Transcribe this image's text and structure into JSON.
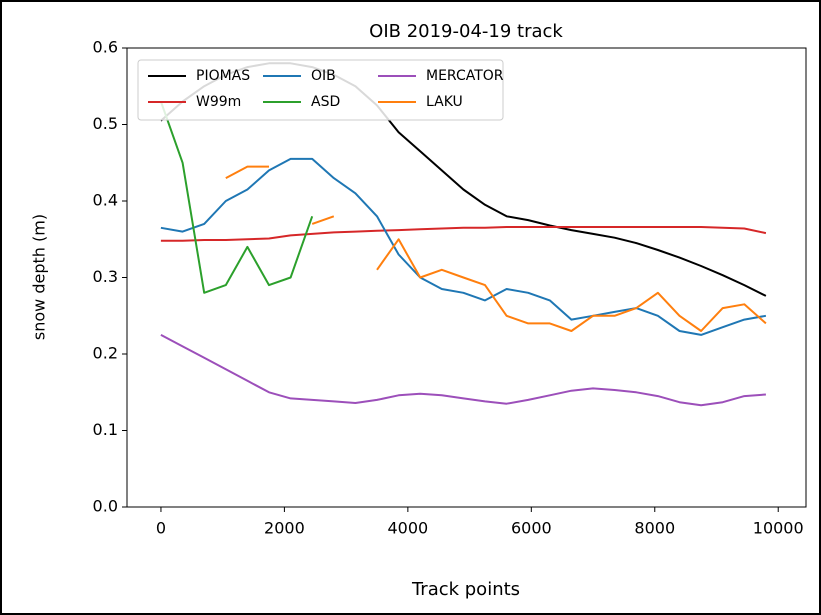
{
  "chart_data": {
    "type": "line",
    "title": "OIB 2019-04-19 track",
    "x_label": "Track points",
    "y_label": "snow depth (m)",
    "x": [
      0,
      350,
      700,
      1050,
      1400,
      1750,
      2100,
      2450,
      2800,
      3150,
      3500,
      3850,
      4200,
      4550,
      4900,
      5250,
      5600,
      5950,
      6300,
      6650,
      7000,
      7350,
      7700,
      8050,
      8400,
      8750,
      9100,
      9450,
      9800
    ],
    "series": [
      {
        "name": "PIOMAS",
        "color": "#000000",
        "values": [
          0.505,
          0.53,
          0.55,
          0.565,
          0.575,
          0.58,
          0.58,
          0.575,
          0.565,
          0.55,
          0.525,
          0.49,
          0.465,
          0.44,
          0.415,
          0.395,
          0.38,
          0.375,
          0.368,
          0.362,
          0.357,
          0.352,
          0.345,
          0.336,
          0.326,
          0.315,
          0.303,
          0.29,
          0.276
        ]
      },
      {
        "name": "W99m",
        "color": "#d62728",
        "values": [
          0.348,
          0.348,
          0.349,
          0.349,
          0.35,
          0.351,
          0.355,
          0.357,
          0.359,
          0.36,
          0.361,
          0.362,
          0.363,
          0.364,
          0.365,
          0.365,
          0.366,
          0.366,
          0.366,
          0.366,
          0.366,
          0.366,
          0.366,
          0.366,
          0.366,
          0.366,
          0.365,
          0.364,
          0.358
        ]
      },
      {
        "name": "OIB",
        "color": "#1f77b4",
        "values": [
          0.365,
          0.36,
          0.37,
          0.4,
          0.415,
          0.44,
          0.455,
          0.455,
          0.43,
          0.41,
          0.38,
          0.33,
          0.3,
          0.285,
          0.28,
          0.27,
          0.285,
          0.28,
          0.27,
          0.245,
          0.25,
          0.255,
          0.26,
          0.25,
          0.23,
          0.225,
          0.235,
          0.245,
          0.25
        ]
      },
      {
        "name": "ASD",
        "color": "#2ca02c",
        "values": [
          0.53,
          0.45,
          0.28,
          0.29,
          0.34,
          0.29,
          0.3,
          0.38,
          null,
          null,
          null,
          null,
          null,
          null,
          null,
          null,
          null,
          null,
          null,
          null,
          null,
          null,
          null,
          null,
          null,
          null,
          null,
          null,
          null
        ]
      },
      {
        "name": "MERCATOR",
        "color": "#9c4fba",
        "values": [
          0.225,
          0.21,
          0.195,
          0.18,
          0.165,
          0.15,
          0.142,
          0.14,
          0.138,
          0.136,
          0.14,
          0.146,
          0.148,
          0.146,
          0.142,
          0.138,
          0.135,
          0.14,
          0.146,
          0.152,
          0.155,
          0.153,
          0.15,
          0.145,
          0.137,
          0.133,
          0.137,
          0.145,
          0.147
        ]
      },
      {
        "name": "LAKU",
        "color": "#ff7f0e",
        "values": [
          null,
          null,
          null,
          0.43,
          0.445,
          0.445,
          null,
          0.37,
          0.38,
          null,
          0.31,
          0.35,
          0.3,
          0.31,
          0.3,
          0.29,
          0.25,
          0.24,
          0.24,
          0.23,
          0.25,
          0.25,
          0.26,
          0.28,
          0.25,
          0.23,
          0.26,
          0.265,
          0.24
        ]
      }
    ],
    "xlim": [
      -550,
      10450
    ],
    "ylim": [
      0,
      0.6
    ],
    "xticks": [
      0,
      2000,
      4000,
      6000,
      8000,
      10000
    ],
    "yticks": [
      {
        "value": 0,
        "label": "0.0"
      },
      0.1,
      0.2,
      0.3,
      0.4,
      0.5,
      0.6
    ],
    "legend": "upper left"
  }
}
